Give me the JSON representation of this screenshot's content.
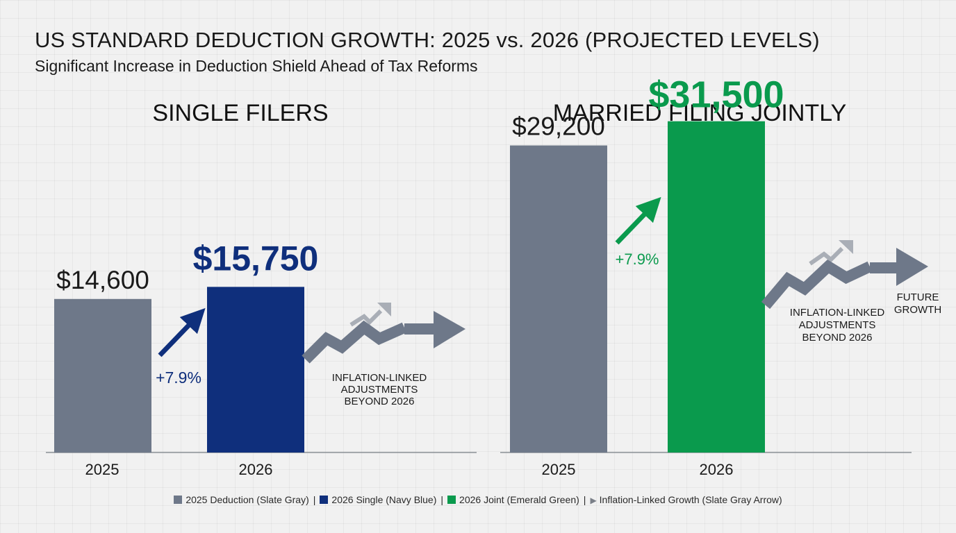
{
  "title": "US STANDARD DEDUCTION GROWTH: 2025 vs. 2026 (PROJECTED LEVELS)",
  "subtitle": "Significant Increase in Deduction Shield Ahead of Tax Reforms",
  "colors": {
    "slate_gray": "#6e7889",
    "navy_blue": "#0f2f7c",
    "emerald_green": "#0a9a4d",
    "light_arrow": "#a9aeb6",
    "axis": "#8a8f96"
  },
  "chart_data": [
    {
      "type": "bar",
      "title": "SINGLE FILERS",
      "categories": [
        "2025",
        "2026"
      ],
      "values": [
        14600,
        15750
      ],
      "value_labels": [
        "$14,600",
        "$15,750"
      ],
      "change_label": "+7.9%",
      "annotation": [
        "INFLATION-LINKED",
        "ADJUSTMENTS",
        "BEYOND 2026"
      ],
      "ylim": [
        0,
        33000
      ]
    },
    {
      "type": "bar",
      "title": "MARRIED FILING JOINTLY",
      "categories": [
        "2025",
        "2026"
      ],
      "values": [
        29200,
        31500
      ],
      "value_labels": [
        "$29,200",
        "$31,500"
      ],
      "change_label": "+7.9%",
      "annotation": [
        "INFLATION-LINKED",
        "ADJUSTMENTS",
        "BEYOND 2026"
      ],
      "arrow_label": [
        "FUTURE",
        "GROWTH"
      ],
      "ylim": [
        0,
        33000
      ]
    }
  ],
  "legend": [
    {
      "label": "2025 Deduction (Slate Gray)",
      "color": "#6e7889",
      "marker": "square"
    },
    {
      "label": "2026 Single (Navy Blue)",
      "color": "#0f2f7c",
      "marker": "square"
    },
    {
      "label": "2026 Joint (Emerald Green)",
      "color": "#0a9a4d",
      "marker": "square"
    },
    {
      "label": "Inflation-Linked Growth (Slate Gray Arrow)",
      "color": "#7a7f88",
      "marker": "arrow"
    }
  ],
  "legend_separator": "|",
  "legend_arrow_glyph": "▶"
}
